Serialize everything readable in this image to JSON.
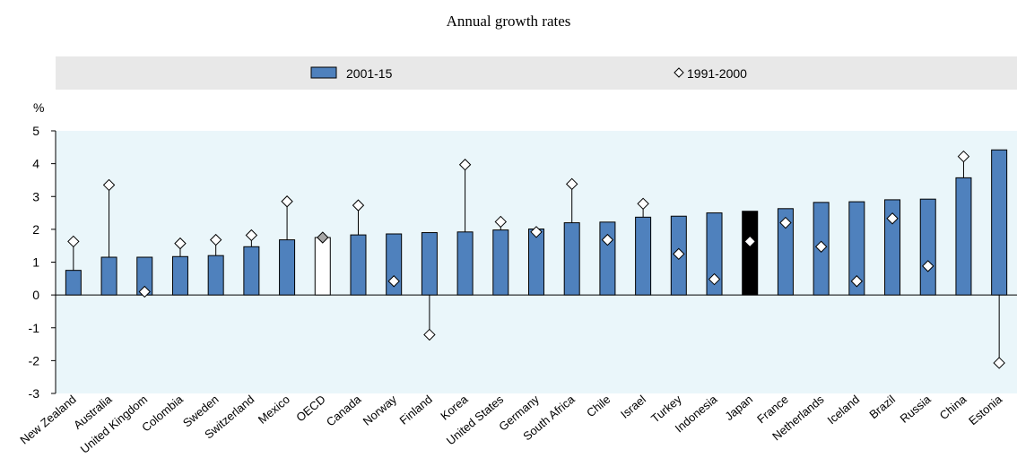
{
  "title": "Annual growth rates",
  "chart_data": {
    "type": "bar",
    "title": "Annual growth rates",
    "ylabel": "%",
    "xlabel": "",
    "ylim": [
      -3,
      5
    ],
    "yticks": [
      5,
      4,
      3,
      2,
      1,
      0,
      -1,
      -2,
      -3
    ],
    "grid": false,
    "legend_position": "top",
    "categories": [
      "New Zealand",
      "Australia",
      "United Kingdom",
      "Colombia",
      "Sweden",
      "Switzerland",
      "Mexico",
      "OECD",
      "Canada",
      "Norway",
      "Finland",
      "Korea",
      "United States",
      "Germany",
      "South Africa",
      "Chile",
      "Israel",
      "Turkey",
      "Indonesia",
      "Japan",
      "France",
      "Netherlands",
      "Iceland",
      "Brazil",
      "Russia",
      "China",
      "Estonia"
    ],
    "series": [
      {
        "name": "2001-15",
        "kind": "bar",
        "values": [
          0.75,
          1.15,
          1.15,
          1.17,
          1.2,
          1.47,
          1.68,
          1.75,
          1.83,
          1.86,
          1.9,
          1.92,
          1.98,
          2.01,
          2.2,
          2.22,
          2.37,
          2.4,
          2.5,
          2.55,
          2.63,
          2.82,
          2.84,
          2.9,
          2.92,
          3.57,
          4.42
        ]
      },
      {
        "name": "1991-2000",
        "kind": "marker",
        "values": [
          1.63,
          3.35,
          0.1,
          1.57,
          1.68,
          1.82,
          2.85,
          1.75,
          2.73,
          0.42,
          -1.21,
          3.97,
          2.23,
          1.92,
          3.38,
          1.68,
          2.78,
          1.25,
          0.48,
          1.63,
          2.2,
          1.47,
          0.42,
          2.33,
          0.88,
          4.22,
          -2.07
        ]
      }
    ],
    "highlight": {
      "OECD": "oecd",
      "Japan": "japan"
    },
    "colors": {
      "bar": "#4f81bd",
      "bar_stroke": "#000000",
      "japan": "#000000",
      "oecd": "#ffffff",
      "marker_fill": "#ffffff",
      "oecd_marker_fill": "#a6a6a6",
      "plot_bg": "#eaf6fa",
      "legend_bg": "#e8e8e8"
    }
  }
}
